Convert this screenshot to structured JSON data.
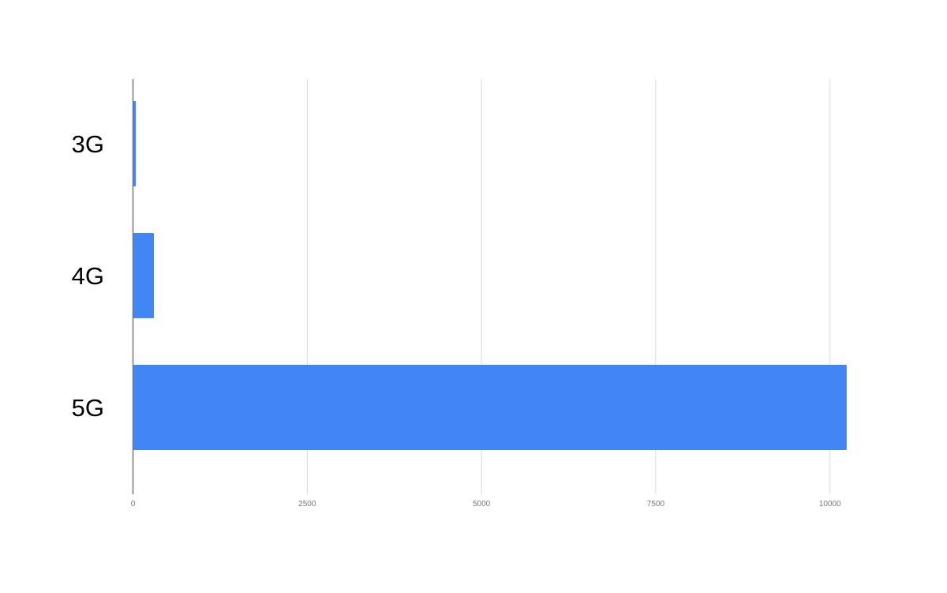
{
  "chart_data": {
    "type": "bar",
    "orientation": "horizontal",
    "categories": [
      "3G",
      "4G",
      "5G"
    ],
    "values": [
      42,
      300,
      10240
    ],
    "title": "",
    "xlabel": "",
    "ylabel": "",
    "xlim": [
      0,
      10240
    ],
    "xticks": [
      0,
      2500,
      5000,
      7500,
      10000
    ],
    "xtick_labels": [
      "0",
      "2500",
      "5000",
      "7500",
      "10000"
    ],
    "grid": true,
    "legend": "none",
    "bar_color": "#4285f4"
  }
}
